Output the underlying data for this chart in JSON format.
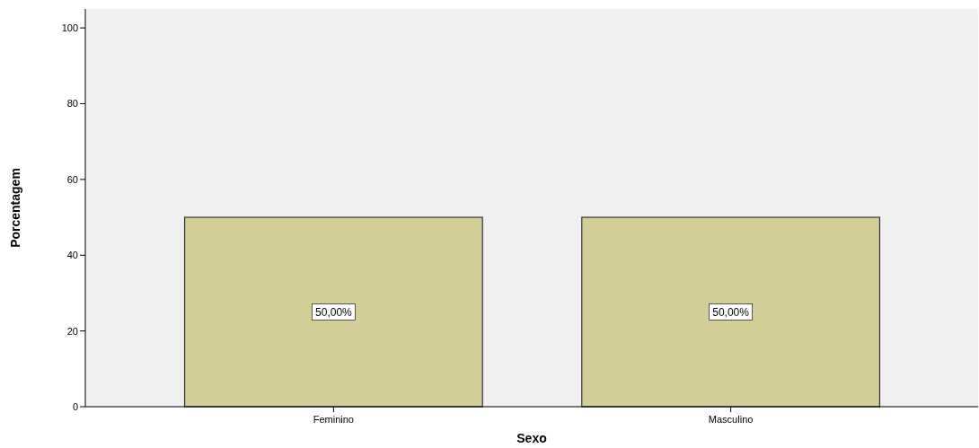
{
  "chart_data": {
    "type": "bar",
    "xlabel": "Sexo",
    "ylabel": "Porcentagem",
    "categories": [
      "Feminino",
      "Masculino"
    ],
    "values": [
      50,
      50
    ],
    "value_labels": [
      "50,00%",
      "50,00%"
    ],
    "color": "#d3ce98",
    "ylim": [
      0,
      105
    ],
    "yticks": [
      0,
      20,
      40,
      60,
      80,
      100
    ],
    "grid": false
  }
}
